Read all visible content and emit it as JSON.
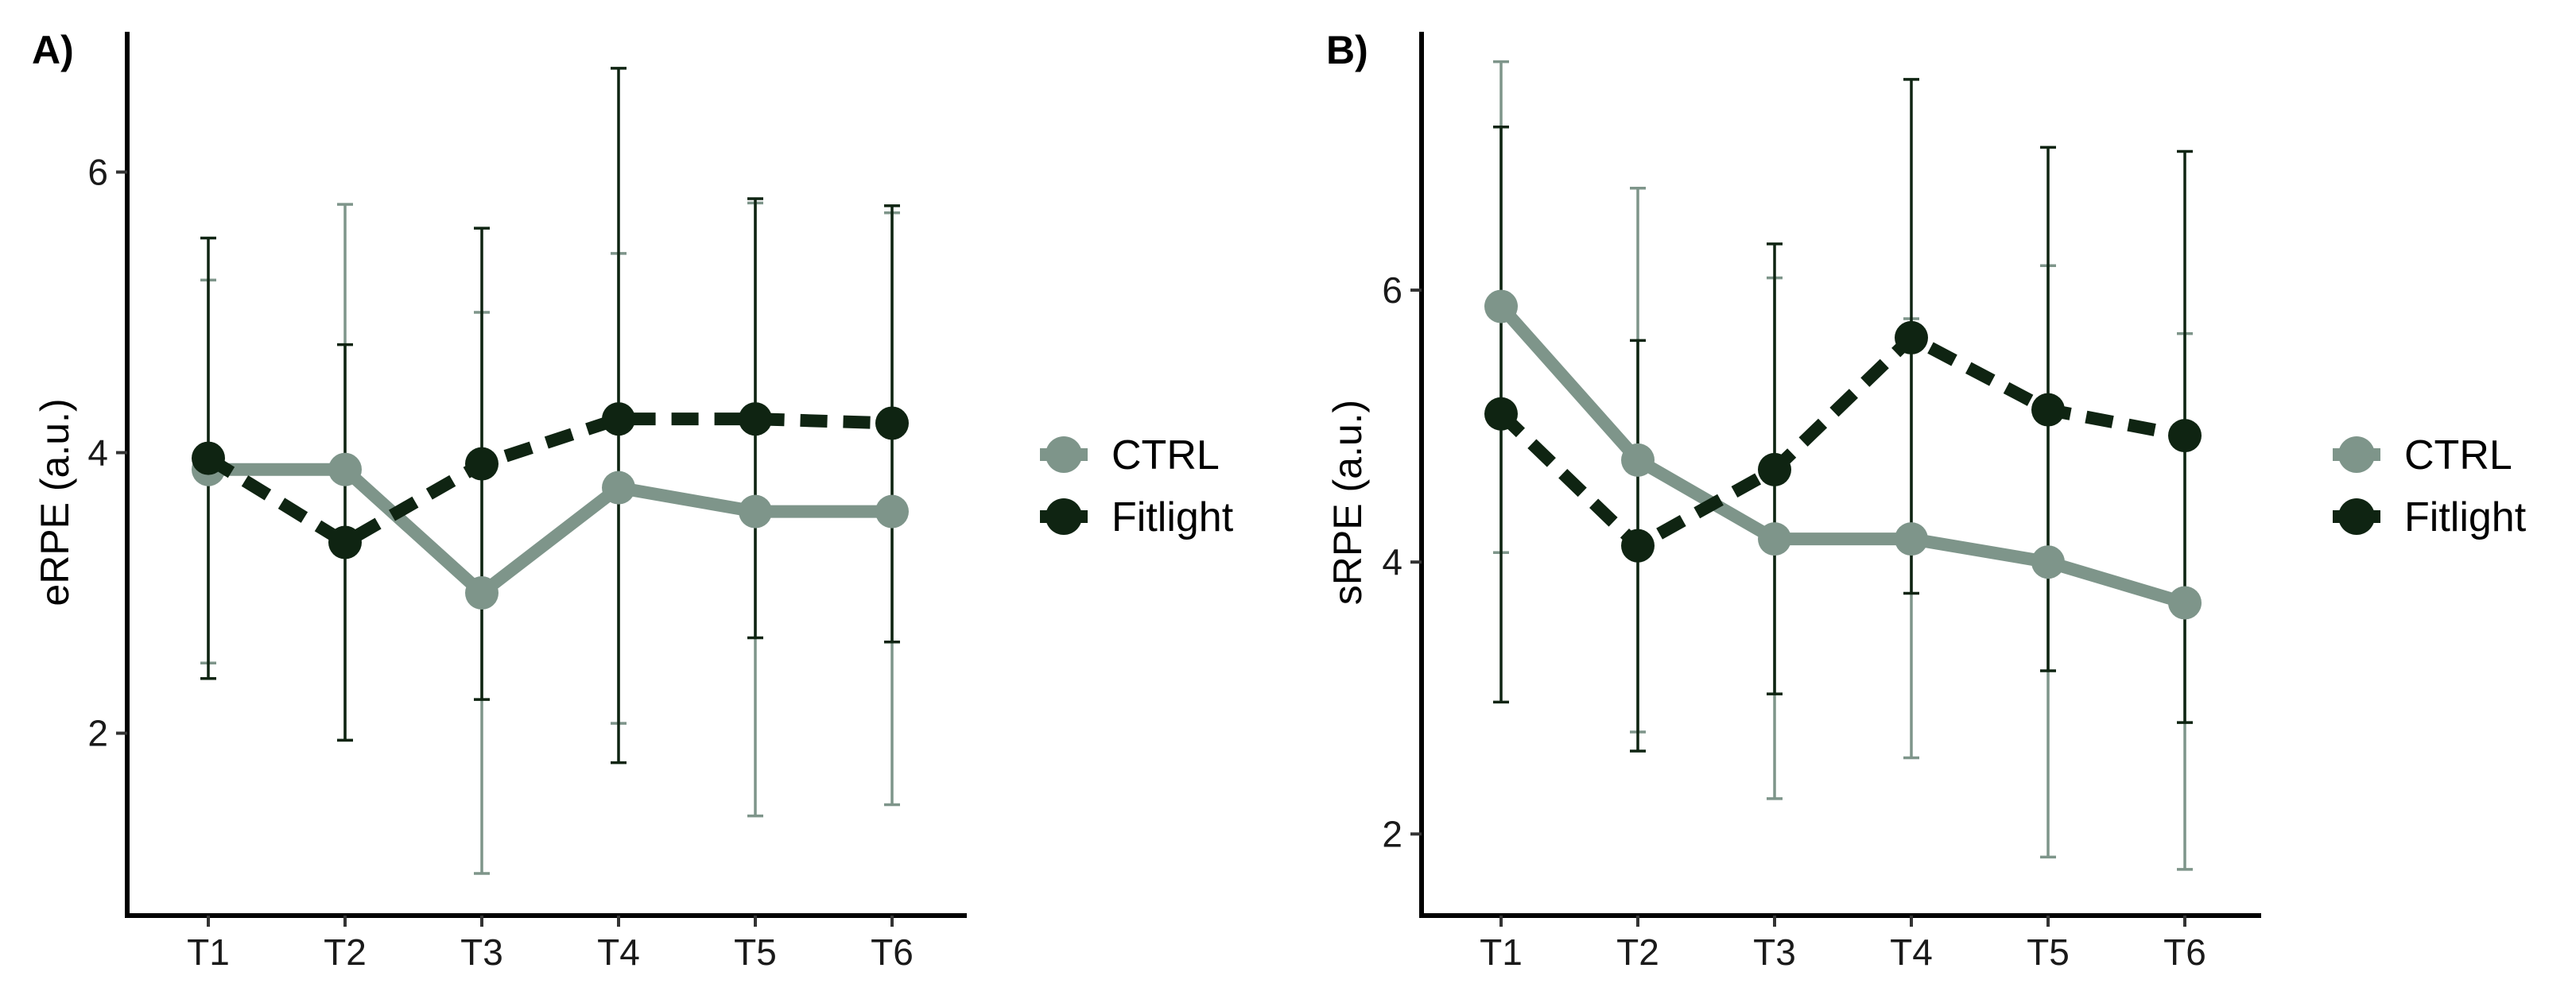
{
  "chart_data": [
    {
      "type": "line",
      "panel_label": "A)",
      "categories": [
        "T1",
        "T2",
        "T3",
        "T4",
        "T5",
        "T6"
      ],
      "xlabel": "",
      "ylabel": "eRPE (a.u.)",
      "yticks": [
        2,
        4,
        6
      ],
      "ylim": [
        0.7,
        7.0
      ],
      "grid": false,
      "legend_position": "right",
      "series": [
        {
          "name": "CTRL",
          "color": "#7e958a",
          "line_style": "solid",
          "values": [
            3.88,
            3.88,
            3.0,
            3.75,
            3.58,
            3.58
          ],
          "err_low": [
            2.5,
            1.95,
            1.0,
            2.07,
            1.41,
            1.49
          ],
          "err_high": [
            5.23,
            5.77,
            5.0,
            5.42,
            5.78,
            5.71
          ]
        },
        {
          "name": "Fitlight",
          "color": "#0f2412",
          "line_style": "dashed",
          "values": [
            3.96,
            3.36,
            3.92,
            4.24,
            4.24,
            4.21
          ],
          "err_low": [
            2.39,
            1.95,
            2.24,
            1.79,
            2.68,
            2.65
          ],
          "err_high": [
            5.53,
            4.77,
            5.6,
            6.74,
            5.81,
            5.76
          ]
        }
      ]
    },
    {
      "type": "line",
      "panel_label": "B)",
      "categories": [
        "T1",
        "T2",
        "T3",
        "T4",
        "T5",
        "T6"
      ],
      "xlabel": "",
      "ylabel": "sRPE (a.u.)",
      "yticks": [
        2,
        4,
        6
      ],
      "ylim": [
        1.4,
        7.9
      ],
      "grid": false,
      "legend_position": "right",
      "series": [
        {
          "name": "CTRL",
          "color": "#7e958a",
          "line_style": "solid",
          "values": [
            5.88,
            4.75,
            4.17,
            4.17,
            4.0,
            3.7
          ],
          "err_low": [
            4.07,
            2.75,
            2.26,
            2.56,
            1.83,
            1.74
          ],
          "err_high": [
            7.68,
            6.75,
            6.09,
            5.79,
            6.18,
            5.68
          ]
        },
        {
          "name": "Fitlight",
          "color": "#0f2412",
          "line_style": "dashed",
          "values": [
            5.09,
            4.12,
            4.68,
            5.65,
            5.12,
            4.93
          ],
          "err_low": [
            2.97,
            2.61,
            3.03,
            3.77,
            3.2,
            2.82
          ],
          "err_high": [
            7.2,
            5.63,
            6.34,
            7.55,
            7.05,
            7.02
          ]
        }
      ]
    }
  ]
}
